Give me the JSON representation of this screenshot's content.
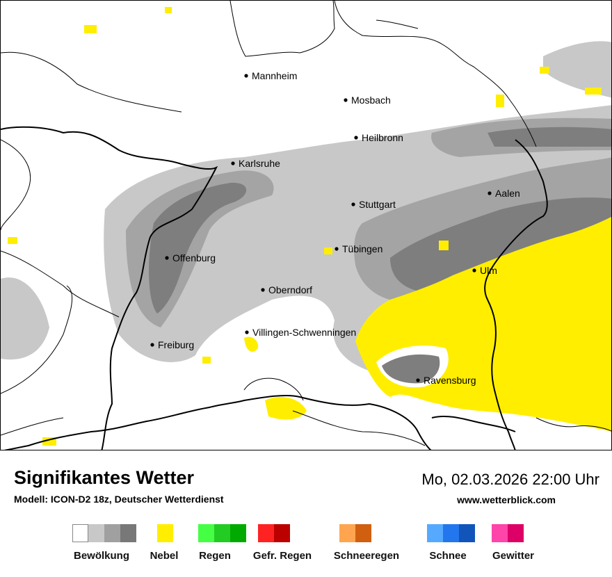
{
  "map": {
    "cities": [
      {
        "name": "Mannheim"
      },
      {
        "name": "Mosbach"
      },
      {
        "name": "Heilbronn"
      },
      {
        "name": "Karlsruhe"
      },
      {
        "name": "Aalen"
      },
      {
        "name": "Stuttgart"
      },
      {
        "name": "Tübingen"
      },
      {
        "name": "Offenburg"
      },
      {
        "name": "Ulm"
      },
      {
        "name": "Oberndorf"
      },
      {
        "name": "Villingen-Schwenningen"
      },
      {
        "name": "Freiburg"
      },
      {
        "name": "Ravensburg"
      }
    ],
    "colors": {
      "cloud_light": "#c8c8c8",
      "cloud_medium": "#a4a4a4",
      "cloud_dark": "#7e7e7e",
      "fog": "#ffee00",
      "borders": "#000000"
    }
  },
  "footer": {
    "title": "Signifikantes Wetter",
    "model": "Modell: ICON-D2 18z, Deutscher Wetterdienst",
    "datetime": "Mo, 02.03.2026 22:00 Uhr",
    "website": "www.wetterblick.com"
  },
  "legend": [
    {
      "label": "Bewölkung",
      "colors": [
        "#ffffff",
        "#c8c8c8",
        "#a0a0a0",
        "#787878"
      ]
    },
    {
      "label": "Nebel",
      "colors": [
        "#ffee00"
      ]
    },
    {
      "label": "Regen",
      "colors": [
        "#44ff44",
        "#22cc22",
        "#00aa00"
      ]
    },
    {
      "label": "Gefr. Regen",
      "colors": [
        "#ff2222",
        "#bb0000"
      ]
    },
    {
      "label": "Schneeregen",
      "colors": [
        "#ffa550",
        "#d06010"
      ]
    },
    {
      "label": "Schnee",
      "colors": [
        "#55aaff",
        "#2277ee",
        "#1155bb"
      ]
    },
    {
      "label": "Gewitter",
      "colors": [
        "#ff44aa",
        "#dd0066"
      ]
    }
  ]
}
